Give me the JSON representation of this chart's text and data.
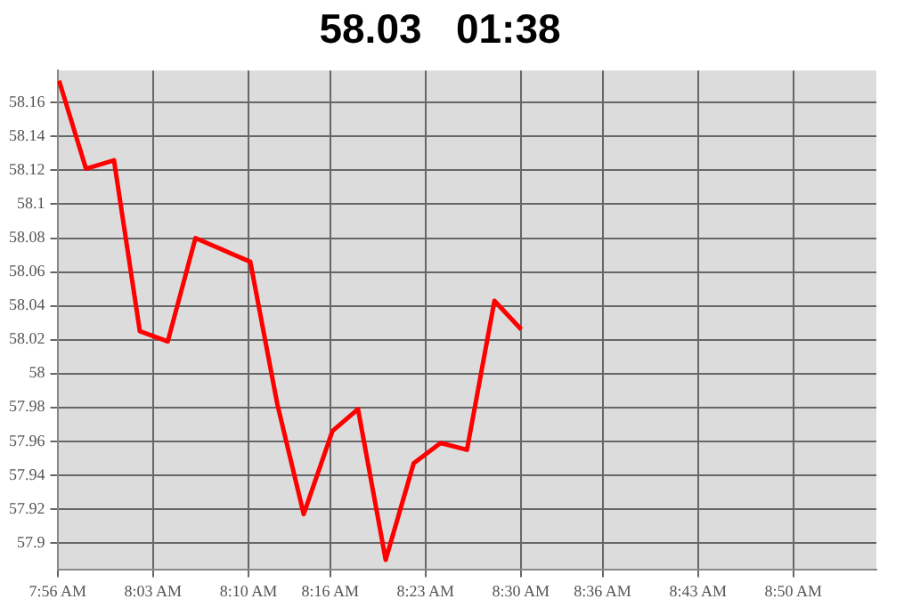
{
  "chart_data": {
    "type": "line",
    "title": "58.03   01:38",
    "x": [
      7.935,
      7.9679,
      8.0022,
      8.0338,
      8.068,
      8.1018,
      8.169,
      8.202,
      8.2343,
      8.2694,
      8.3008,
      8.3346,
      8.3689,
      8.4018,
      8.4341,
      8.4677,
      8.5006
    ],
    "series": [
      {
        "color": "#ff0000",
        "values": [
          58.173,
          58.121,
          58.126,
          58.025,
          58.019,
          58.08,
          58.066,
          57.982,
          57.917,
          57.966,
          57.979,
          57.89,
          57.947,
          57.959,
          57.955,
          58.043,
          58.026
        ]
      }
    ],
    "xlim": [
      7.933,
      8.935
    ],
    "xticks": [
      {
        "value": 7.9333,
        "label": "7:56 AM"
      },
      {
        "value": 8.05,
        "label": "8:03 AM"
      },
      {
        "value": 8.1667,
        "label": "8:10 AM"
      },
      {
        "value": 8.2667,
        "label": "8:16 AM"
      },
      {
        "value": 8.3833,
        "label": "8:23 AM"
      },
      {
        "value": 8.5,
        "label": "8:30 AM"
      },
      {
        "value": 8.6,
        "label": "8:36 AM"
      },
      {
        "value": 8.7167,
        "label": "8:43 AM"
      },
      {
        "value": 8.8333,
        "label": "8:50 AM"
      }
    ],
    "ylim": [
      57.884,
      58.179
    ],
    "yticks": [
      57.9,
      57.92,
      57.94,
      57.96,
      57.98,
      58,
      58.02,
      58.04,
      58.06,
      58.08,
      58.1,
      58.12,
      58.14,
      58.16
    ],
    "grid": true,
    "legend": false,
    "marker": "none",
    "line_style": "solid"
  }
}
